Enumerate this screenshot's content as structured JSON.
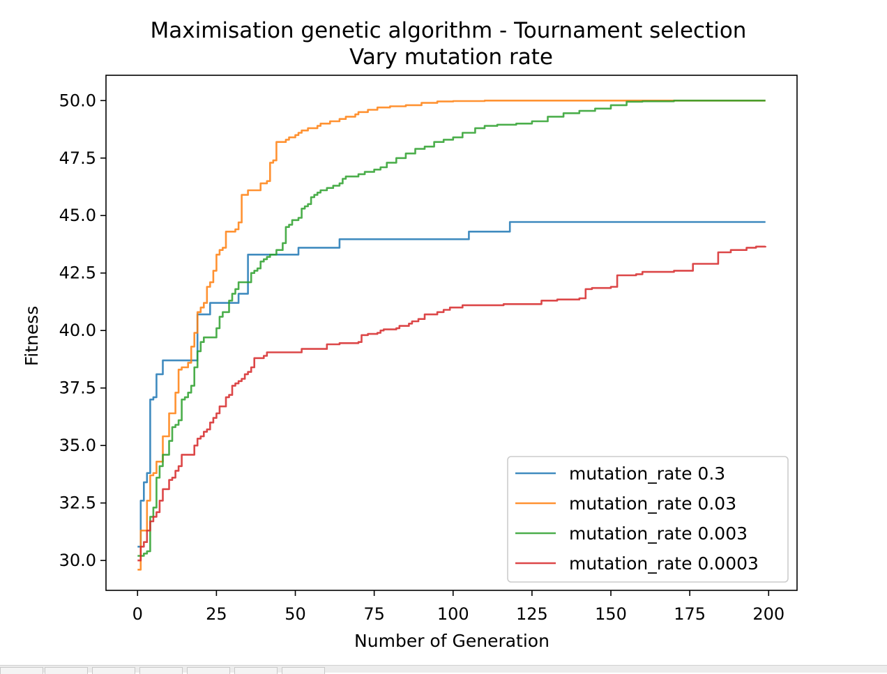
{
  "chart_data": {
    "type": "line",
    "title": "Maximisation genetic algorithm - Tournament selection",
    "subtitle": "Vary mutation rate",
    "xlabel": "Number of Generation",
    "ylabel": "Fitness",
    "xlim": [
      -10,
      209
    ],
    "ylim": [
      28.7,
      51.1
    ],
    "xticks": [
      0,
      25,
      50,
      75,
      100,
      125,
      150,
      175,
      200
    ],
    "xtick_labels": [
      "0",
      "25",
      "50",
      "75",
      "100",
      "125",
      "150",
      "175",
      "200"
    ],
    "yticks": [
      30.0,
      32.5,
      35.0,
      37.5,
      40.0,
      42.5,
      45.0,
      47.5,
      50.0
    ],
    "ytick_labels": [
      "30.0",
      "32.5",
      "35.0",
      "37.5",
      "40.0",
      "42.5",
      "45.0",
      "47.5",
      "50.0"
    ],
    "grid": false,
    "legend_position": "lower-right",
    "series": [
      {
        "name": "mutation_rate 0.3",
        "color": "#1f77b4",
        "points": [
          [
            0,
            30.6
          ],
          [
            1,
            32.6
          ],
          [
            2,
            33.4
          ],
          [
            3,
            33.8
          ],
          [
            4,
            37.0
          ],
          [
            5,
            37.1
          ],
          [
            6,
            38.1
          ],
          [
            7,
            38.1
          ],
          [
            8,
            38.7
          ],
          [
            12,
            38.7
          ],
          [
            18,
            38.7
          ],
          [
            19,
            40.7
          ],
          [
            22,
            40.7
          ],
          [
            23,
            41.2
          ],
          [
            31,
            41.2
          ],
          [
            32,
            41.6
          ],
          [
            34,
            41.6
          ],
          [
            35,
            43.3
          ],
          [
            50,
            43.3
          ],
          [
            51,
            43.6
          ],
          [
            63,
            43.6
          ],
          [
            64,
            43.97
          ],
          [
            104,
            43.97
          ],
          [
            105,
            44.3
          ],
          [
            117,
            44.3
          ],
          [
            118,
            44.72
          ],
          [
            199,
            44.72
          ]
        ]
      },
      {
        "name": "mutation_rate 0.03",
        "color": "#ff7f0e",
        "points": [
          [
            0,
            29.6
          ],
          [
            1,
            31.3
          ],
          [
            2,
            31.3
          ],
          [
            3,
            32.6
          ],
          [
            4,
            33.7
          ],
          [
            5,
            33.8
          ],
          [
            6,
            34.3
          ],
          [
            7,
            34.3
          ],
          [
            8,
            35.4
          ],
          [
            9,
            35.4
          ],
          [
            10,
            36.4
          ],
          [
            11,
            36.4
          ],
          [
            12,
            37.3
          ],
          [
            13,
            38.3
          ],
          [
            14,
            38.4
          ],
          [
            15,
            38.4
          ],
          [
            16,
            38.6
          ],
          [
            17,
            39.3
          ],
          [
            18,
            39.9
          ],
          [
            19,
            40.8
          ],
          [
            20,
            41.0
          ],
          [
            21,
            41.2
          ],
          [
            22,
            41.9
          ],
          [
            23,
            42.1
          ],
          [
            24,
            42.6
          ],
          [
            25,
            43.3
          ],
          [
            26,
            43.5
          ],
          [
            27,
            43.6
          ],
          [
            28,
            44.3
          ],
          [
            30,
            44.3
          ],
          [
            31,
            44.4
          ],
          [
            32,
            44.7
          ],
          [
            33,
            45.9
          ],
          [
            34,
            45.9
          ],
          [
            35,
            46.1
          ],
          [
            38,
            46.1
          ],
          [
            39,
            46.4
          ],
          [
            41,
            46.5
          ],
          [
            42,
            47.3
          ],
          [
            43,
            47.4
          ],
          [
            44,
            48.2
          ],
          [
            46,
            48.2
          ],
          [
            47,
            48.3
          ],
          [
            48,
            48.4
          ],
          [
            49,
            48.4
          ],
          [
            50,
            48.5
          ],
          [
            51,
            48.6
          ],
          [
            52,
            48.7
          ],
          [
            53,
            48.7
          ],
          [
            54,
            48.8
          ],
          [
            56,
            48.8
          ],
          [
            57,
            48.9
          ],
          [
            58,
            49.0
          ],
          [
            60,
            49.0
          ],
          [
            61,
            49.1
          ],
          [
            63,
            49.1
          ],
          [
            64,
            49.2
          ],
          [
            66,
            49.3
          ],
          [
            69,
            49.4
          ],
          [
            70,
            49.5
          ],
          [
            73,
            49.6
          ],
          [
            76,
            49.7
          ],
          [
            80,
            49.75
          ],
          [
            85,
            49.8
          ],
          [
            90,
            49.9
          ],
          [
            95,
            49.96
          ],
          [
            100,
            49.98
          ],
          [
            110,
            50.0
          ],
          [
            199,
            50.0
          ]
        ]
      },
      {
        "name": "mutation_rate 0.003",
        "color": "#2ca02c",
        "points": [
          [
            0,
            30.2
          ],
          [
            2,
            30.3
          ],
          [
            3,
            30.4
          ],
          [
            4,
            31.9
          ],
          [
            5,
            32.3
          ],
          [
            6,
            33.6
          ],
          [
            7,
            34.1
          ],
          [
            8,
            34.6
          ],
          [
            9,
            34.6
          ],
          [
            10,
            35.2
          ],
          [
            11,
            35.8
          ],
          [
            12,
            35.9
          ],
          [
            13,
            36.1
          ],
          [
            14,
            37.0
          ],
          [
            15,
            37.1
          ],
          [
            16,
            37.3
          ],
          [
            17,
            37.6
          ],
          [
            18,
            38.4
          ],
          [
            19,
            39.1
          ],
          [
            20,
            39.5
          ],
          [
            21,
            39.7
          ],
          [
            24,
            39.7
          ],
          [
            25,
            40.1
          ],
          [
            26,
            40.6
          ],
          [
            27,
            40.8
          ],
          [
            28,
            40.8
          ],
          [
            29,
            41.3
          ],
          [
            30,
            41.6
          ],
          [
            31,
            41.8
          ],
          [
            32,
            42.1
          ],
          [
            35,
            42.1
          ],
          [
            36,
            42.5
          ],
          [
            37,
            42.6
          ],
          [
            38,
            42.7
          ],
          [
            39,
            43.0
          ],
          [
            40,
            43.1
          ],
          [
            41,
            43.2
          ],
          [
            42,
            43.3
          ],
          [
            43,
            43.3
          ],
          [
            44,
            43.5
          ],
          [
            46,
            43.8
          ],
          [
            47,
            44.5
          ],
          [
            48,
            44.6
          ],
          [
            49,
            44.8
          ],
          [
            51,
            44.9
          ],
          [
            52,
            45.3
          ],
          [
            53,
            45.4
          ],
          [
            54,
            45.5
          ],
          [
            55,
            45.8
          ],
          [
            56,
            45.9
          ],
          [
            57,
            46.0
          ],
          [
            58,
            46.1
          ],
          [
            60,
            46.2
          ],
          [
            62,
            46.3
          ],
          [
            64,
            46.4
          ],
          [
            65,
            46.6
          ],
          [
            66,
            46.7
          ],
          [
            70,
            46.8
          ],
          [
            72,
            46.9
          ],
          [
            75,
            47.0
          ],
          [
            77,
            47.1
          ],
          [
            79,
            47.3
          ],
          [
            82,
            47.5
          ],
          [
            85,
            47.7
          ],
          [
            88,
            47.9
          ],
          [
            91,
            48.0
          ],
          [
            94,
            48.2
          ],
          [
            97,
            48.3
          ],
          [
            100,
            48.4
          ],
          [
            103,
            48.6
          ],
          [
            107,
            48.8
          ],
          [
            110,
            48.9
          ],
          [
            114,
            48.95
          ],
          [
            120,
            49.0
          ],
          [
            125,
            49.1
          ],
          [
            130,
            49.3
          ],
          [
            135,
            49.45
          ],
          [
            140,
            49.55
          ],
          [
            145,
            49.65
          ],
          [
            150,
            49.8
          ],
          [
            155,
            49.95
          ],
          [
            160,
            49.97
          ],
          [
            170,
            50.0
          ],
          [
            199,
            50.0
          ]
        ]
      },
      {
        "name": "mutation_rate 0.0003",
        "color": "#d62728",
        "points": [
          [
            0,
            30.0
          ],
          [
            1,
            30.6
          ],
          [
            2,
            30.8
          ],
          [
            3,
            31.3
          ],
          [
            4,
            31.7
          ],
          [
            5,
            31.9
          ],
          [
            6,
            32.1
          ],
          [
            7,
            32.6
          ],
          [
            8,
            33.1
          ],
          [
            10,
            33.5
          ],
          [
            11,
            33.6
          ],
          [
            12,
            33.9
          ],
          [
            13,
            34.1
          ],
          [
            14,
            34.6
          ],
          [
            16,
            34.6
          ],
          [
            18,
            35.0
          ],
          [
            19,
            35.3
          ],
          [
            20,
            35.4
          ],
          [
            21,
            35.6
          ],
          [
            22,
            35.7
          ],
          [
            23,
            36.0
          ],
          [
            24,
            36.2
          ],
          [
            25,
            36.4
          ],
          [
            26,
            36.7
          ],
          [
            27,
            36.7
          ],
          [
            28,
            37.1
          ],
          [
            29,
            37.2
          ],
          [
            30,
            37.6
          ],
          [
            31,
            37.7
          ],
          [
            32,
            37.8
          ],
          [
            33,
            37.9
          ],
          [
            34,
            38.1
          ],
          [
            35,
            38.2
          ],
          [
            36,
            38.4
          ],
          [
            37,
            38.8
          ],
          [
            39,
            38.8
          ],
          [
            40,
            38.9
          ],
          [
            41,
            39.05
          ],
          [
            50,
            39.05
          ],
          [
            52,
            39.2
          ],
          [
            58,
            39.2
          ],
          [
            60,
            39.4
          ],
          [
            62,
            39.4
          ],
          [
            64,
            39.45
          ],
          [
            70,
            39.5
          ],
          [
            71,
            39.8
          ],
          [
            73,
            39.85
          ],
          [
            76,
            39.9
          ],
          [
            77,
            40.0
          ],
          [
            78,
            40.05
          ],
          [
            82,
            40.1
          ],
          [
            83,
            40.2
          ],
          [
            86,
            40.3
          ],
          [
            87,
            40.4
          ],
          [
            89,
            40.5
          ],
          [
            91,
            40.7
          ],
          [
            95,
            40.8
          ],
          [
            97,
            40.9
          ],
          [
            99,
            41.0
          ],
          [
            103,
            41.1
          ],
          [
            110,
            41.1
          ],
          [
            116,
            41.15
          ],
          [
            125,
            41.15
          ],
          [
            128,
            41.3
          ],
          [
            133,
            41.35
          ],
          [
            140,
            41.4
          ],
          [
            142,
            41.8
          ],
          [
            144,
            41.85
          ],
          [
            150,
            41.9
          ],
          [
            152,
            42.4
          ],
          [
            158,
            42.45
          ],
          [
            160,
            42.55
          ],
          [
            170,
            42.6
          ],
          [
            176,
            42.9
          ],
          [
            183,
            42.9
          ],
          [
            184,
            43.4
          ],
          [
            188,
            43.5
          ],
          [
            193,
            43.6
          ],
          [
            196,
            43.65
          ],
          [
            199,
            43.67
          ]
        ]
      }
    ]
  }
}
